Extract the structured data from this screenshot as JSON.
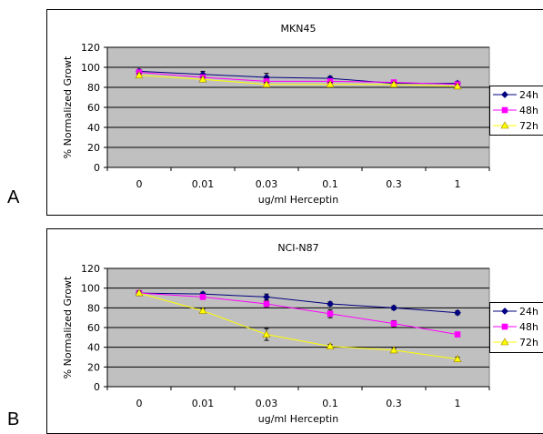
{
  "panels": [
    {
      "label": "A"
    },
    {
      "label": "B"
    }
  ],
  "chart_data": [
    {
      "type": "line",
      "title": "MKN45",
      "xlabel": "ug/ml  Herceptin",
      "ylabel": "% Normalized Growt",
      "categories": [
        "0",
        "0.01",
        "0.03",
        "0.1",
        "0.3",
        "1"
      ],
      "yticks": [
        0,
        20,
        40,
        60,
        80,
        100,
        120
      ],
      "ylim": [
        0,
        120
      ],
      "grid": true,
      "legend_position": "right",
      "series": [
        {
          "name": "24h",
          "color": "#000080",
          "marker": "diamond",
          "values": [
            96,
            93,
            90,
            89,
            84,
            84
          ],
          "errors": [
            2,
            3,
            4,
            2,
            2,
            2
          ]
        },
        {
          "name": "48h",
          "color": "#ff00ff",
          "marker": "square",
          "values": [
            95,
            90,
            86,
            86,
            85,
            83
          ],
          "errors": [
            2,
            2,
            3,
            2,
            2,
            2
          ]
        },
        {
          "name": "72h",
          "color": "#ffff00",
          "marker": "triangle",
          "values": [
            92,
            88,
            83,
            83,
            83,
            81
          ],
          "errors": [
            2,
            2,
            2,
            2,
            2,
            2
          ]
        }
      ]
    },
    {
      "type": "line",
      "title": "NCI-N87",
      "xlabel": "ug/ml  Herceptin",
      "ylabel": "% Normalized Growt",
      "categories": [
        "0",
        "0.01",
        "0.03",
        "0.1",
        "0.3",
        "1"
      ],
      "yticks": [
        0,
        20,
        40,
        60,
        80,
        100,
        120
      ],
      "ylim": [
        0,
        120
      ],
      "grid": true,
      "legend_position": "right",
      "series": [
        {
          "name": "24h",
          "color": "#000080",
          "marker": "diamond",
          "values": [
            95,
            94,
            91,
            84,
            80,
            75
          ],
          "errors": [
            2,
            2,
            3,
            2,
            2,
            2
          ]
        },
        {
          "name": "48h",
          "color": "#ff00ff",
          "marker": "square",
          "values": [
            95,
            91,
            84,
            74,
            64,
            53
          ],
          "errors": [
            2,
            2,
            3,
            4,
            3,
            2
          ]
        },
        {
          "name": "72h",
          "color": "#ffff00",
          "marker": "triangle",
          "values": [
            95,
            77,
            53,
            41,
            37,
            28
          ],
          "errors": [
            2,
            2,
            6,
            2,
            2,
            2
          ]
        }
      ]
    }
  ]
}
